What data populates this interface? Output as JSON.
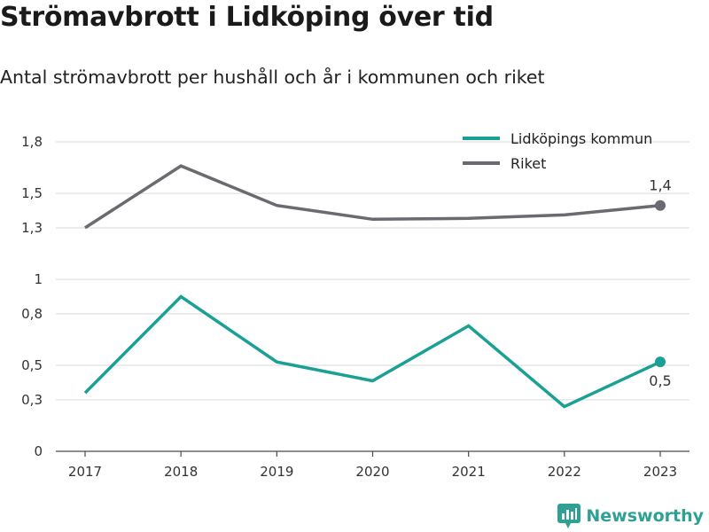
{
  "title": "Strömavbrott i Lidköping över tid",
  "subtitle": "Antal strömavbrott per hushåll och år i kommunen och riket",
  "brand": {
    "name": "Newsworthy",
    "icon": "newsworthy-logo-icon",
    "color": "#2ea194"
  },
  "chart_data": {
    "type": "line",
    "title": "Strömavbrott i Lidköping över tid",
    "subtitle": "Antal strömavbrott per hushåll och år i kommunen och riket",
    "x": [
      "2017",
      "2018",
      "2019",
      "2020",
      "2021",
      "2022",
      "2023"
    ],
    "series": [
      {
        "name": "Lidköpings kommun",
        "color": "#1aa094",
        "values": [
          0.34,
          0.9,
          0.52,
          0.41,
          0.73,
          0.26,
          0.52
        ],
        "end_label": "0,5",
        "end_label_position": "below"
      },
      {
        "name": "Riket",
        "color": "#6b6a70",
        "values": [
          1.3,
          1.66,
          1.43,
          1.35,
          1.355,
          1.375,
          1.43
        ],
        "end_label": "1,4",
        "end_label_position": "above"
      }
    ],
    "y_ticks": [
      {
        "value": 0,
        "label": "0"
      },
      {
        "value": 0.3,
        "label": "0,3"
      },
      {
        "value": 0.5,
        "label": "0,5"
      },
      {
        "value": 0.8,
        "label": "0,8"
      },
      {
        "value": 1.0,
        "label": "1"
      },
      {
        "value": 1.3,
        "label": "1,3"
      },
      {
        "value": 1.5,
        "label": "1,5"
      },
      {
        "value": 1.8,
        "label": "1,8"
      }
    ],
    "ylim": [
      0,
      1.8
    ],
    "xlabel": "",
    "ylabel": "",
    "grid": true,
    "legend": "top-right"
  }
}
